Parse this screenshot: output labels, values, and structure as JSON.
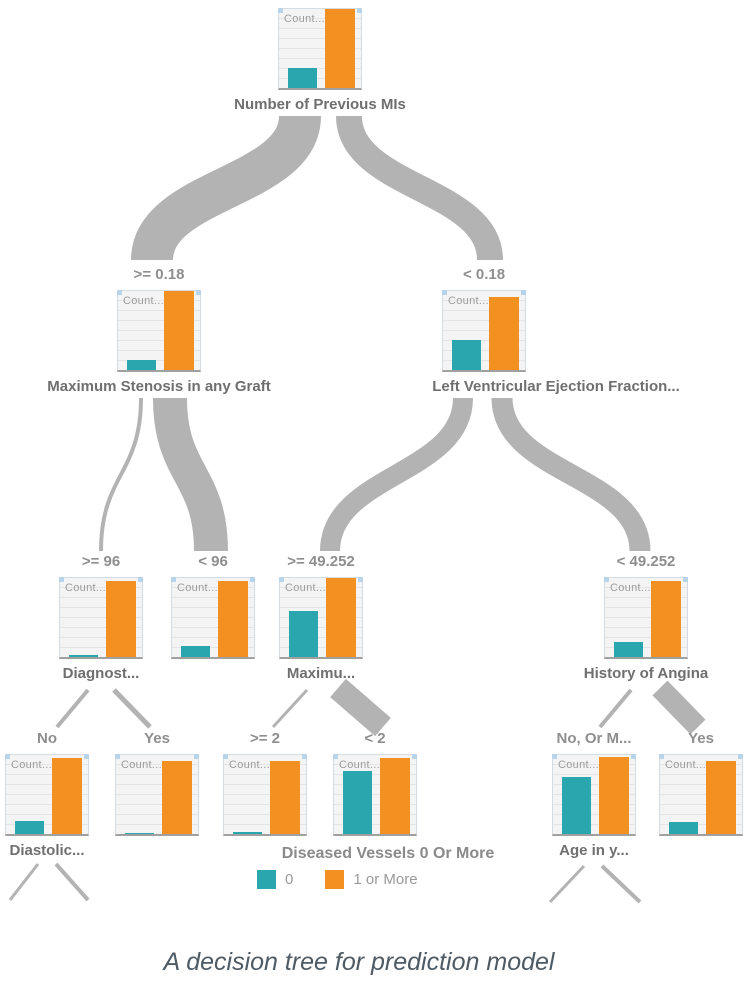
{
  "caption": "A decision tree for prediction model",
  "node_chart_header": "Count...",
  "colors": {
    "bar_0": "#2AA7AE",
    "bar_1_or_more": "#F29121",
    "link": "#B3B3B3"
  },
  "tree": {
    "nodes": [
      {
        "id": "root",
        "parent": null,
        "branch_label": "",
        "node_label": "Number of Previous MIs",
        "bar_0_pct": 25,
        "bar_1_or_more_pct": 100
      },
      {
        "id": "stenosis",
        "parent": "root",
        "branch_label": ">= 0.18",
        "node_label": "Maximum Stenosis in any Graft",
        "bar_0_pct": 13,
        "bar_1_or_more_pct": 100
      },
      {
        "id": "lvef",
        "parent": "root",
        "branch_label": "< 0.18",
        "node_label": "Left Ventricular Ejection Fraction...",
        "bar_0_pct": 38,
        "bar_1_or_more_pct": 93
      },
      {
        "id": "diagnostic",
        "parent": "stenosis",
        "branch_label": ">= 96",
        "node_label": "Diagnost...",
        "bar_0_pct": 2,
        "bar_1_or_more_pct": 96
      },
      {
        "id": "lt96",
        "parent": "stenosis",
        "branch_label": "< 96",
        "node_label": "",
        "bar_0_pct": 14,
        "bar_1_or_more_pct": 96
      },
      {
        "id": "maximu",
        "parent": "lvef",
        "branch_label": ">= 49.252",
        "node_label": "Maximu...",
        "bar_0_pct": 58,
        "bar_1_or_more_pct": 100
      },
      {
        "id": "angina",
        "parent": "lvef",
        "branch_label": "< 49.252",
        "node_label": "History of Angina",
        "bar_0_pct": 19,
        "bar_1_or_more_pct": 96
      },
      {
        "id": "diastolic",
        "parent": "diagnostic",
        "branch_label": "No",
        "node_label": "Diastolic...",
        "bar_0_pct": 17,
        "bar_1_or_more_pct": 96
      },
      {
        "id": "yes1",
        "parent": "diagnostic",
        "branch_label": "Yes",
        "node_label": "",
        "bar_0_pct": 1,
        "bar_1_or_more_pct": 92
      },
      {
        "id": "ge2",
        "parent": "maximu",
        "branch_label": ">= 2",
        "node_label": "",
        "bar_0_pct": 2.5,
        "bar_1_or_more_pct": 93
      },
      {
        "id": "lt2",
        "parent": "maximu",
        "branch_label": "< 2",
        "node_label": "",
        "bar_0_pct": 80,
        "bar_1_or_more_pct": 96
      },
      {
        "id": "noorm",
        "parent": "angina",
        "branch_label": "No, Or M...",
        "node_label": "Age in y...",
        "bar_0_pct": 72,
        "bar_1_or_more_pct": 97
      },
      {
        "id": "yes2",
        "parent": "angina",
        "branch_label": "Yes",
        "node_label": "",
        "bar_0_pct": 15,
        "bar_1_or_more_pct": 93
      }
    ]
  },
  "legend": {
    "title": "Diseased Vessels 0 Or More",
    "items": [
      {
        "label": "0",
        "color": "#2AA7AE"
      },
      {
        "label": "1 or More",
        "color": "#F29121"
      }
    ]
  }
}
